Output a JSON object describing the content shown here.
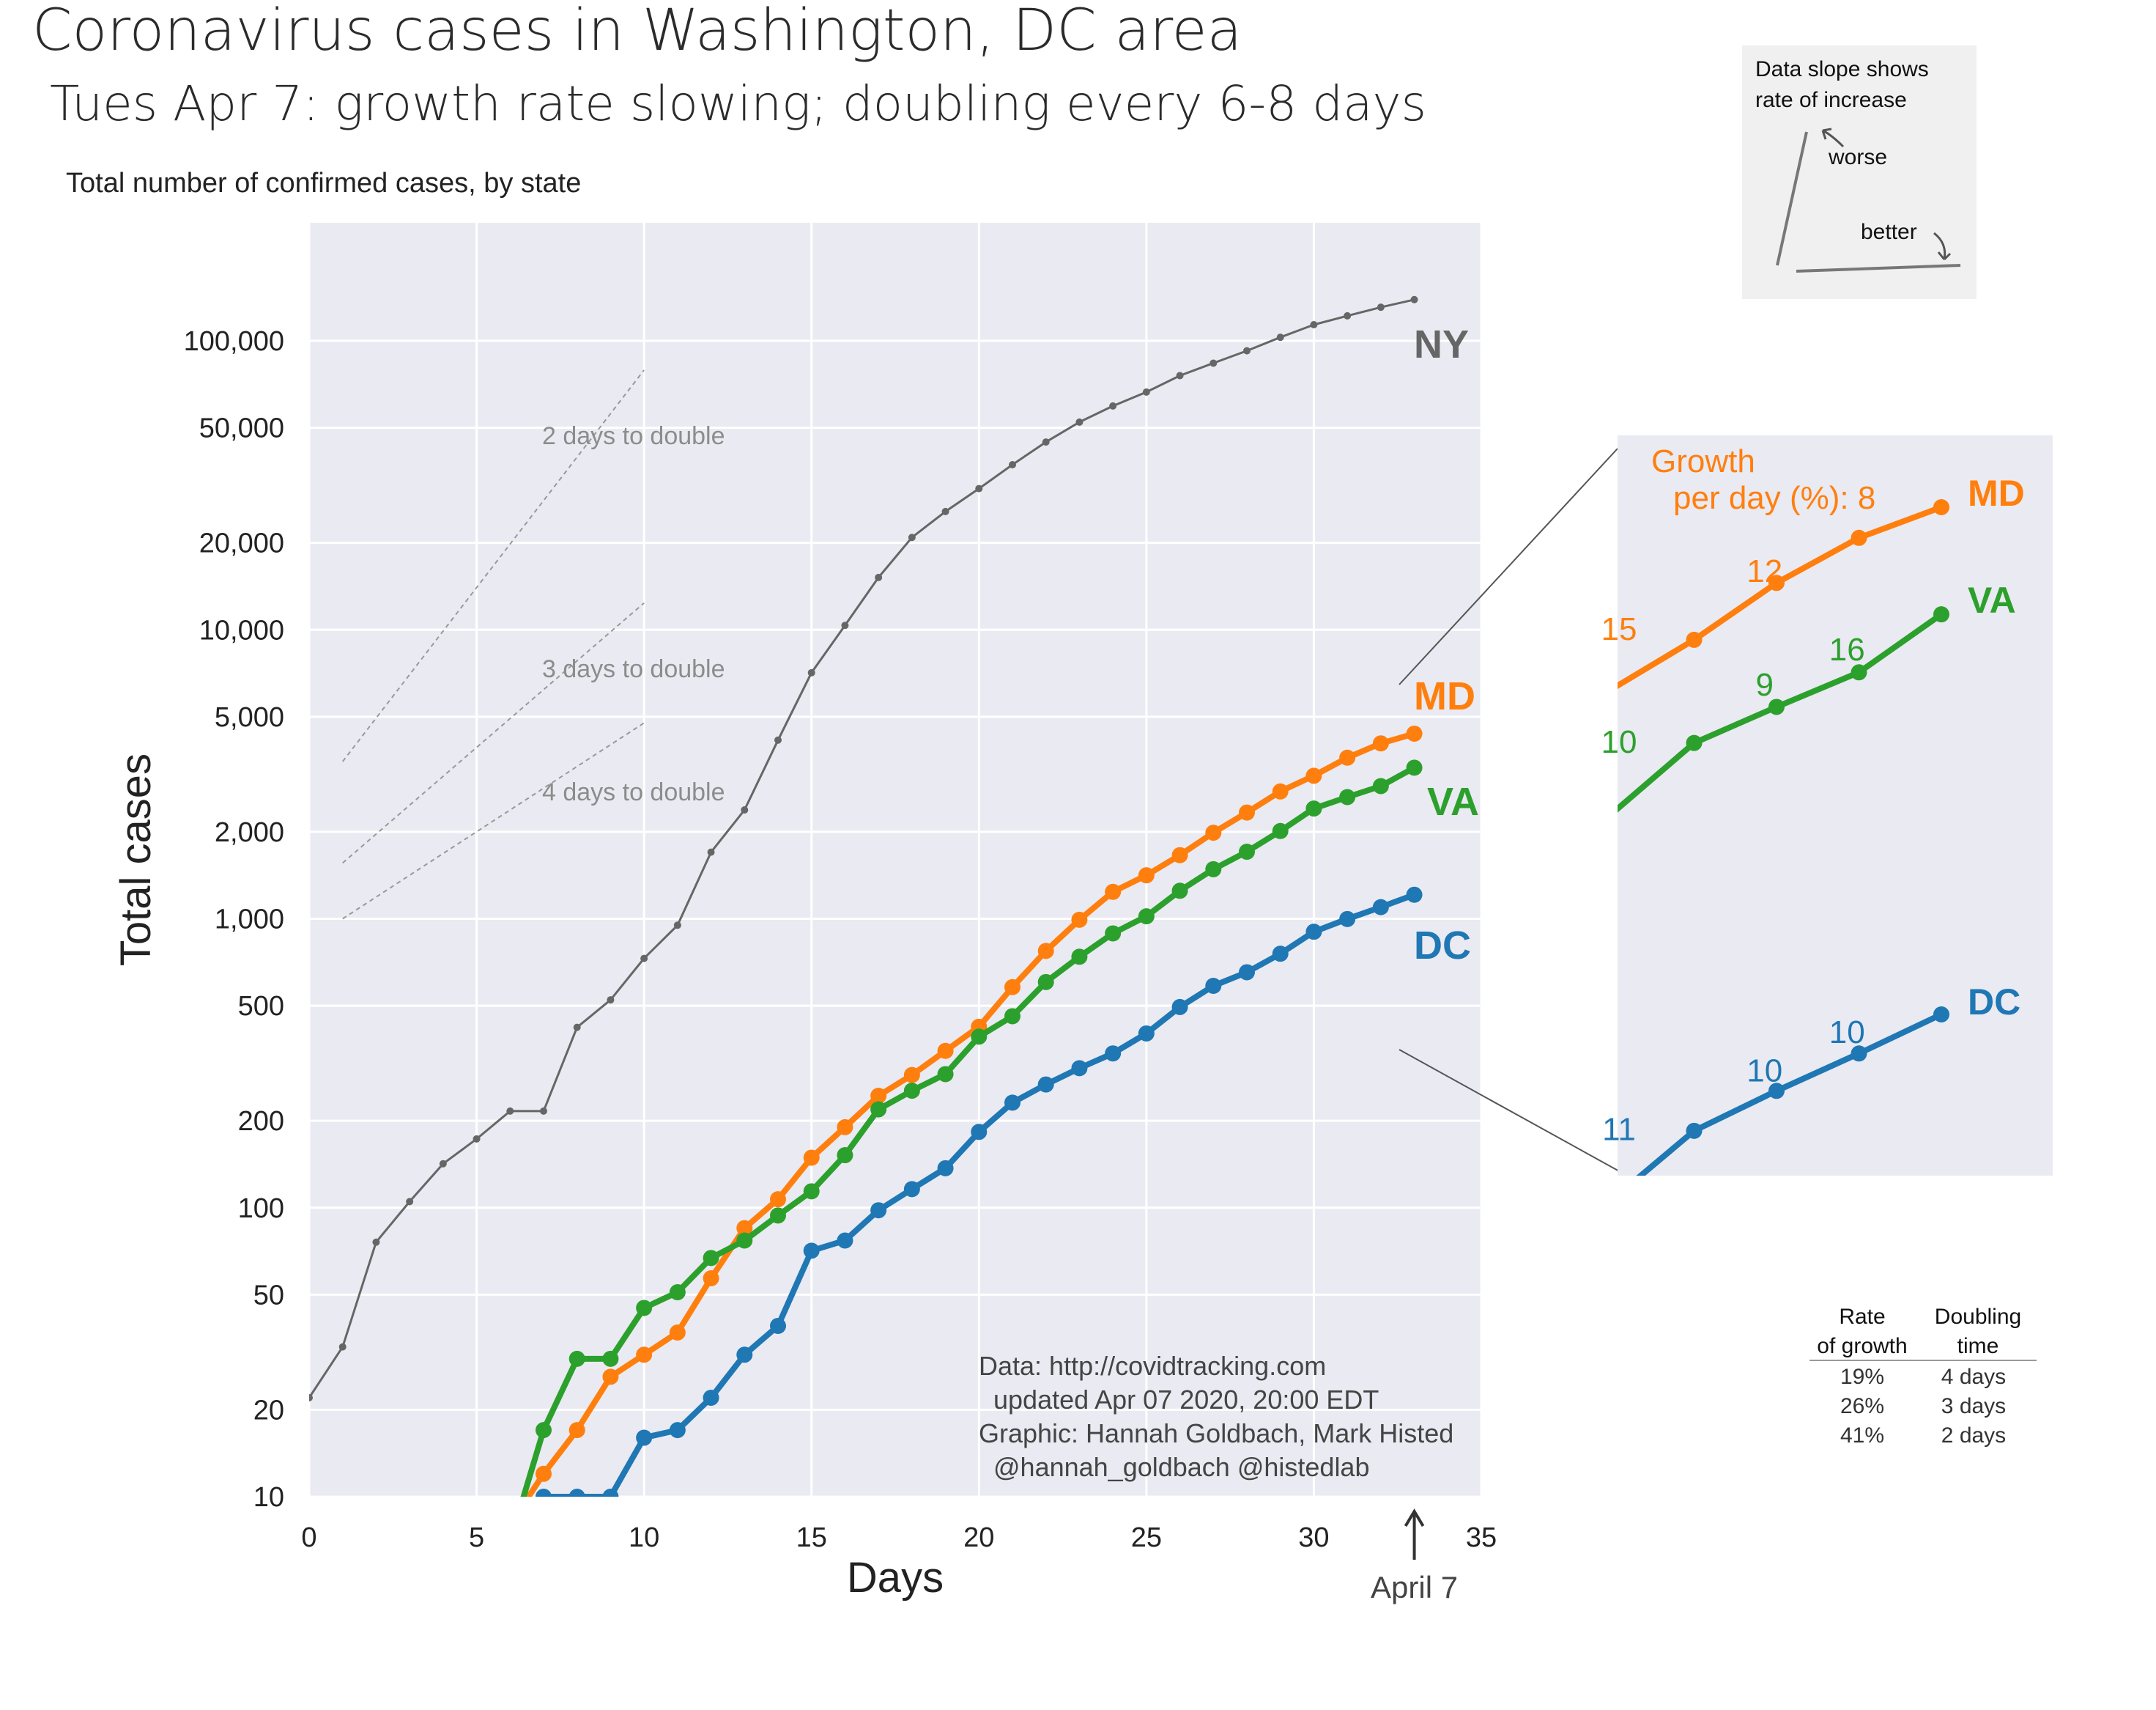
{
  "title": "Coronavirus cases in Washington, DC area",
  "subtitle": "Tues Apr 7: growth rate slowing; doubling every 6-8 days",
  "panel_caption": "Total number of confirmed cases, by state",
  "chart_data": [
    {
      "type": "line",
      "xlabel": "Days",
      "ylabel": "Total cases",
      "yscale": "log",
      "xlim": [
        0,
        35
      ],
      "ylim": [
        10,
        200000
      ],
      "xticks": [
        0,
        5,
        10,
        15,
        20,
        25,
        30,
        35
      ],
      "yticks": [
        10,
        20,
        50,
        100,
        200,
        500,
        1000,
        2000,
        5000,
        10000,
        20000,
        50000,
        100000
      ],
      "ytick_labels": [
        "10",
        "20",
        "50",
        "100",
        "200",
        "500",
        "1,000",
        "2,000",
        "5,000",
        "10,000",
        "20,000",
        "50,000",
        "100,000"
      ],
      "xtick_labels": [
        "0",
        "5",
        "10",
        "15",
        "20",
        "25",
        "30",
        "35"
      ],
      "grid": true,
      "colors": {
        "NY": "#666666",
        "MD": "#ff7f0e",
        "VA": "#2ca02c",
        "DC": "#1f77b4",
        "ref": "#999999",
        "bg": "#eaeaf2"
      },
      "series": [
        {
          "name": "NY",
          "label": "NY",
          "color": "#666666",
          "x": [
            0,
            1,
            2,
            3,
            4,
            5,
            6,
            7,
            8,
            9,
            10,
            11,
            12,
            13,
            14,
            15,
            16,
            17,
            18,
            19,
            20,
            21,
            22,
            23,
            24,
            25,
            26,
            27,
            28,
            29,
            30,
            31,
            32,
            33
          ],
          "y": [
            22,
            33,
            76,
            105,
            142,
            173,
            216,
            216,
            421,
            524,
            729,
            950,
            1700,
            2380,
            4152,
            7102,
            10356,
            15168,
            20875,
            25665,
            30811,
            37258,
            44635,
            52318,
            59513,
            66497,
            75795,
            83712,
            92381,
            102863,
            113704,
            122031,
            130689,
            138863
          ]
        },
        {
          "name": "MD",
          "label": "MD",
          "color": "#ff7f0e",
          "x": [
            6,
            7,
            8,
            9,
            10,
            11,
            12,
            13,
            14,
            15,
            16,
            17,
            18,
            19,
            20,
            21,
            22,
            23,
            24,
            25,
            26,
            27,
            28,
            29,
            30,
            31,
            32,
            33
          ],
          "y": [
            8,
            12,
            17,
            26,
            31,
            37,
            57,
            85,
            107,
            149,
            190,
            244,
            288,
            349,
            423,
            580,
            774,
            992,
            1239,
            1414,
            1660,
            1985,
            2331,
            2758,
            3125,
            3609,
            4045,
            4371
          ]
        },
        {
          "name": "VA",
          "label": "VA",
          "color": "#2ca02c",
          "x": [
            6,
            7,
            8,
            9,
            10,
            11,
            12,
            13,
            14,
            15,
            16,
            17,
            18,
            19,
            20,
            21,
            22,
            23,
            24,
            25,
            26,
            27,
            28,
            29,
            30,
            31,
            32,
            33
          ],
          "y": [
            7,
            17,
            30,
            30,
            45,
            51,
            67,
            77,
            94,
            114,
            152,
            219,
            254,
            290,
            391,
            460,
            604,
            739,
            890,
            1020,
            1250,
            1484,
            1706,
            2012,
            2407,
            2637,
            2878,
            3333
          ]
        },
        {
          "name": "DC",
          "label": "DC",
          "color": "#1f77b4",
          "x": [
            7,
            8,
            9,
            10,
            11,
            12,
            13,
            14,
            15,
            16,
            17,
            18,
            19,
            20,
            21,
            22,
            23,
            24,
            25,
            26,
            27,
            28,
            29,
            30,
            31,
            32,
            33
          ],
          "y": [
            10,
            10,
            10,
            16,
            17,
            22,
            31,
            39,
            71,
            77,
            98,
            116,
            137,
            183,
            231,
            267,
            304,
            342,
            401,
            495,
            586,
            653,
            757,
            902,
            998,
            1097,
            1211
          ]
        }
      ],
      "reference_lines": [
        {
          "label": "2 days to double",
          "x": [
            1,
            10
          ],
          "y": [
            3500,
            79200
          ]
        },
        {
          "label": "3 days to double",
          "x": [
            1,
            10
          ],
          "y": [
            1560,
            12380
          ]
        },
        {
          "label": "4 days to double",
          "x": [
            1,
            10
          ],
          "y": [
            1000,
            4760
          ]
        }
      ],
      "annotations": {
        "source": [
          "Data: http://covidtracking.com",
          "  updated Apr 07 2020, 20:00 EDT",
          "Graphic: Hannah Goldbach, Mark Histed",
          "  @hannah_goldbach @histedlab"
        ],
        "marker_label": "April 7",
        "marker_x": 33
      }
    },
    {
      "type": "line",
      "inset": true,
      "yscale": "log",
      "growth_title": [
        "Growth",
        "per day (%): 8"
      ],
      "series": [
        {
          "name": "MD",
          "label": "MD",
          "color": "#ff7f0e",
          "x": [
            29,
            30,
            31,
            32,
            33
          ],
          "y": [
            2758,
            3125,
            3609,
            4045,
            4371
          ],
          "growth_labels": [
            "15",
            "12",
            "8"
          ]
        },
        {
          "name": "VA",
          "label": "VA",
          "color": "#2ca02c",
          "x": [
            29,
            30,
            31,
            32,
            33
          ],
          "y": [
            2012,
            2407,
            2637,
            2878,
            3333
          ],
          "growth_labels": [
            "10",
            "9",
            "16"
          ]
        },
        {
          "name": "DC",
          "label": "DC",
          "color": "#1f77b4",
          "x": [
            29,
            30,
            31,
            32,
            33
          ],
          "y": [
            757,
            902,
            998,
            1097,
            1211
          ],
          "growth_labels": [
            "11",
            "10",
            "10"
          ]
        }
      ]
    }
  ],
  "legend_box": {
    "text": [
      "Data slope shows",
      "rate of increase"
    ],
    "worse": "worse",
    "better": "better"
  },
  "growth_table": {
    "headers": [
      [
        "Rate",
        "of growth"
      ],
      [
        "Doubling",
        "time"
      ]
    ],
    "rows": [
      [
        "19%",
        "4 days"
      ],
      [
        "26%",
        "3 days"
      ],
      [
        "41%",
        "2 days"
      ]
    ]
  }
}
